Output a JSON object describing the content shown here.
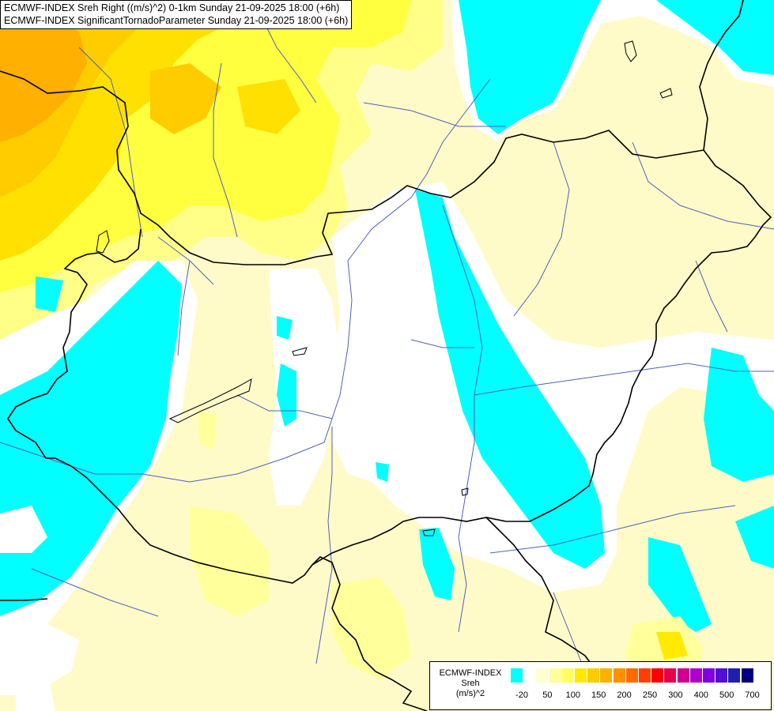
{
  "title": {
    "line1": "ECMWF-INDEX Sreh Right ((m/s)^2) 0-1km Sunday 21-09-2025 18:00 (+6h)",
    "line2": "ECMWF-INDEX SignificantTornadoParameter Sunday 21-09-2025 18:00 (+6h)"
  },
  "legend": {
    "source": "ECMWF-INDEX",
    "variable": "Sreh",
    "unit": "(m/s)^2",
    "ticks": [
      "-20",
      "50",
      "100",
      "150",
      "200",
      "250",
      "300",
      "400",
      "500",
      "700"
    ],
    "colors": [
      "#00ffff",
      "#ffffff",
      "#ffffd0",
      "#ffff9c",
      "#ffff60",
      "#ffea00",
      "#ffcc00",
      "#ffb000",
      "#ff9000",
      "#ff6a00",
      "#ff4000",
      "#ff0000",
      "#e8004a",
      "#d00090",
      "#b000d0",
      "#8000e0",
      "#5010d0",
      "#2020b0",
      "#000080"
    ]
  },
  "colors": {
    "background": "#fffbc8",
    "cyan": "#00ffff",
    "white": "#ffffff",
    "yellow": "#ffff30",
    "orange": "#ffc000",
    "border": "#000000",
    "river": "#5060c0"
  }
}
